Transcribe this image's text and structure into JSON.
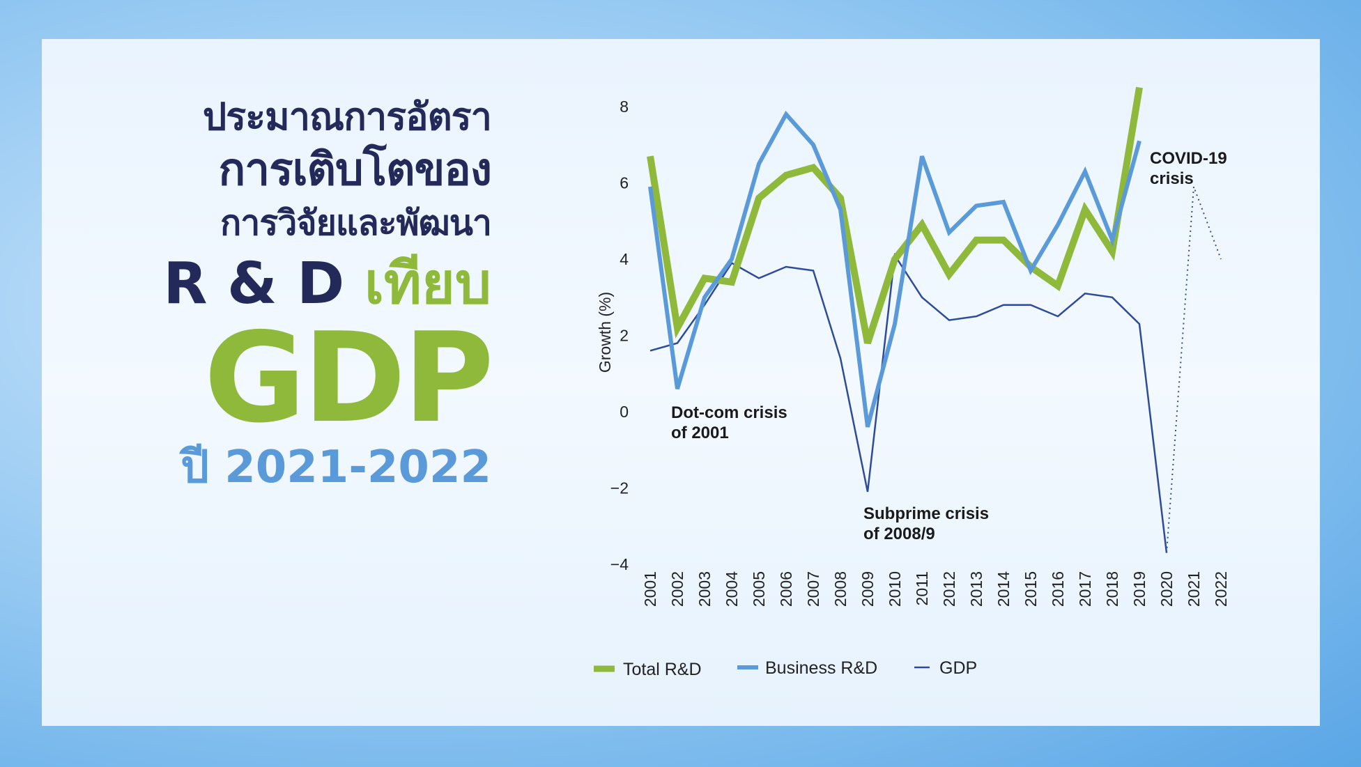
{
  "title": {
    "line1": "ประมาณการอัตรา",
    "line2": "การเติบโตของ",
    "line3": "การวิจัยและพัฒนา",
    "line4_rd": "R & D",
    "line4_vs": "เทียบ",
    "line5": "GDP",
    "line6": "ปี 2021-2022"
  },
  "colors": {
    "total_rd": "#8fb93b",
    "business_rd": "#5b9ad9",
    "gdp": "#2e4a9a",
    "title_dark": "#232a5a"
  },
  "chart_data": {
    "type": "line",
    "ylabel": "Growth (%)",
    "ylim": [
      -4,
      8
    ],
    "yticks": [
      "8",
      "6",
      "4",
      "2",
      "0",
      "−2",
      "−4"
    ],
    "ytick_values": [
      8,
      6,
      4,
      2,
      0,
      -2,
      -4
    ],
    "x": [
      "2001",
      "2002",
      "2003",
      "2004",
      "2005",
      "2006",
      "2007",
      "2008",
      "2009",
      "2010",
      "2011",
      "2012",
      "2013",
      "2014",
      "2015",
      "2016",
      "2017",
      "2018",
      "2019",
      "2020",
      "2021",
      "2022"
    ],
    "series": [
      {
        "name": "Total R&D",
        "values": [
          6.7,
          2.2,
          3.5,
          3.4,
          5.6,
          6.2,
          6.4,
          5.6,
          1.8,
          4.0,
          4.9,
          3.6,
          4.5,
          4.5,
          3.8,
          3.3,
          5.3,
          4.2,
          8.5,
          null,
          null,
          null
        ]
      },
      {
        "name": "Business R&D",
        "values": [
          5.9,
          0.6,
          3.0,
          4.0,
          6.5,
          7.8,
          7.0,
          5.3,
          -0.4,
          2.3,
          6.7,
          4.7,
          5.4,
          5.5,
          3.7,
          4.9,
          6.3,
          4.5,
          7.1,
          null,
          null,
          null
        ]
      },
      {
        "name": "GDP",
        "values": [
          1.6,
          1.8,
          2.8,
          3.9,
          3.5,
          3.8,
          3.7,
          1.4,
          -2.1,
          4.1,
          3.0,
          2.4,
          2.5,
          2.8,
          2.8,
          2.5,
          3.1,
          3.0,
          2.3,
          -3.7,
          null,
          null
        ]
      }
    ],
    "forecast": {
      "x": [
        "2020",
        "2021",
        "2022"
      ],
      "values": [
        -3.7,
        5.9,
        4.0
      ]
    },
    "annotations": [
      {
        "text_lines": [
          "Dot-com crisis",
          "of 2001"
        ]
      },
      {
        "text_lines": [
          "Subprime crisis",
          "of 2008/9"
        ]
      },
      {
        "text_lines": [
          "COVID-19",
          "crisis"
        ]
      }
    ],
    "legend": [
      "Total R&D",
      "Business R&D",
      "GDP"
    ]
  }
}
